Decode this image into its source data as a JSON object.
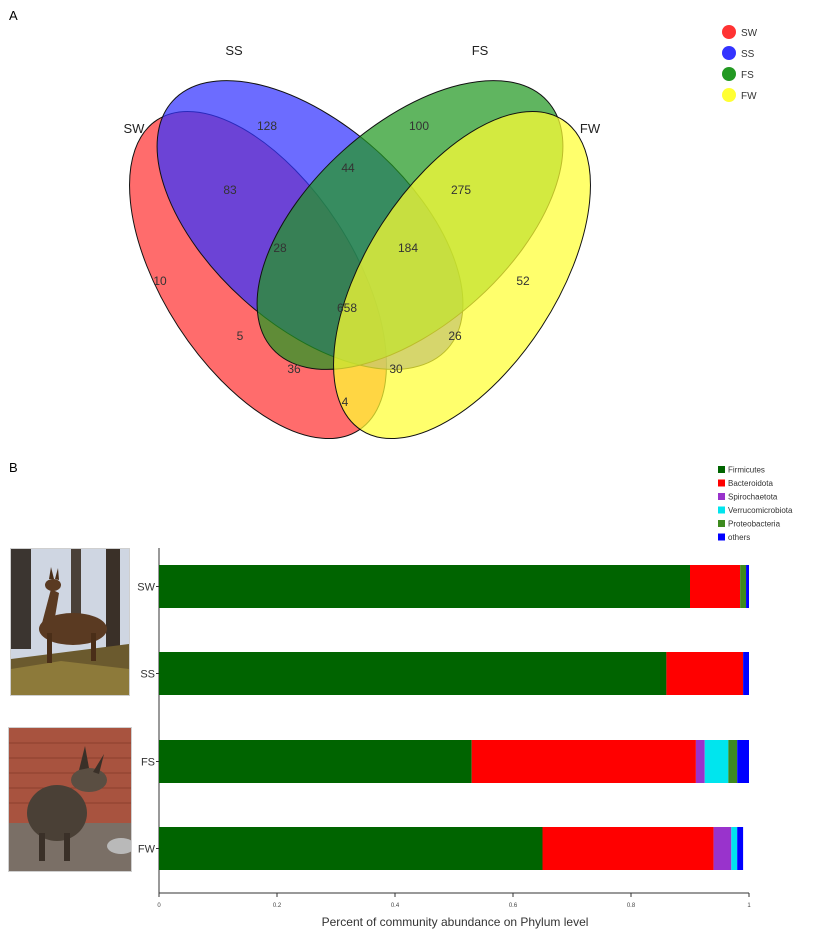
{
  "panel_a_label": "A",
  "panel_b_label": "B",
  "colors": {
    "SW": "#ff3333",
    "SS": "#3333ff",
    "FS": "#229922",
    "FW": "#ffff33",
    "Firmicutes": "#006400",
    "Bacteroidota": "#ff0000",
    "Spirochaetota": "#9933cc",
    "Verrucomicrobiota": "#00e5ee",
    "Proteobacteria": "#3d8a1e",
    "others": "#0000ff"
  },
  "chart_data": [
    {
      "type": "venn",
      "sets": [
        "SW",
        "SS",
        "FS",
        "FW"
      ],
      "set_labels": [
        "SW",
        "SS",
        "FS",
        "FW"
      ],
      "legend": [
        "SW",
        "SS",
        "FS",
        "FW"
      ],
      "legend_position": "top-right",
      "regions": [
        {
          "sets": [
            "SW"
          ],
          "value": 10
        },
        {
          "sets": [
            "SS"
          ],
          "value": 128
        },
        {
          "sets": [
            "FS"
          ],
          "value": 100
        },
        {
          "sets": [
            "FW"
          ],
          "value": 52
        },
        {
          "sets": [
            "SW",
            "SS"
          ],
          "value": 83
        },
        {
          "sets": [
            "SS",
            "FS"
          ],
          "value": 44
        },
        {
          "sets": [
            "FS",
            "FW"
          ],
          "value": 275
        },
        {
          "sets": [
            "SW",
            "FW"
          ],
          "value": 4
        },
        {
          "sets": [
            "SW",
            "FS"
          ],
          "value": 5
        },
        {
          "sets": [
            "SS",
            "FW"
          ],
          "value": 26
        },
        {
          "sets": [
            "SW",
            "SS",
            "FS"
          ],
          "value": 28
        },
        {
          "sets": [
            "SS",
            "FS",
            "FW"
          ],
          "value": 184
        },
        {
          "sets": [
            "SW",
            "FS",
            "FW"
          ],
          "value": 36
        },
        {
          "sets": [
            "SW",
            "SS",
            "FW"
          ],
          "value": 30
        },
        {
          "sets": [
            "SW",
            "SS",
            "FS",
            "FW"
          ],
          "value": 658
        }
      ]
    },
    {
      "type": "bar",
      "orientation": "horizontal",
      "stacked": true,
      "categories": [
        "SW",
        "SS",
        "FS",
        "FW"
      ],
      "xlabel": "Percent of community abundance on Phylum level",
      "xlim": [
        0,
        1
      ],
      "xticks": [
        0,
        0.2,
        0.4,
        0.6,
        0.8,
        1
      ],
      "tick_labels": [
        "0",
        "0.2",
        "0.4",
        "0.6",
        "0.8",
        "1"
      ],
      "legend_position": "top-right",
      "series": [
        {
          "name": "Firmicutes",
          "values": [
            0.9,
            0.86,
            0.53,
            0.65
          ]
        },
        {
          "name": "Bacteroidota",
          "values": [
            0.085,
            0.13,
            0.38,
            0.29
          ]
        },
        {
          "name": "Spirochaetota",
          "values": [
            0.0,
            0.0,
            0.015,
            0.03
          ]
        },
        {
          "name": "Verrucomicrobiota",
          "values": [
            0.0,
            0.0,
            0.04,
            0.01
          ]
        },
        {
          "name": "Proteobacteria",
          "values": [
            0.01,
            0.0,
            0.015,
            0.0
          ]
        },
        {
          "name": "others",
          "values": [
            0.005,
            0.01,
            0.02,
            0.01
          ]
        }
      ]
    }
  ],
  "photos": [
    {
      "name": "musk-deer-in-snow-photo",
      "alt": "musk deer standing in snowy forest"
    },
    {
      "name": "musk-deer-indoor-photo",
      "alt": "musk deer in enclosure"
    }
  ]
}
